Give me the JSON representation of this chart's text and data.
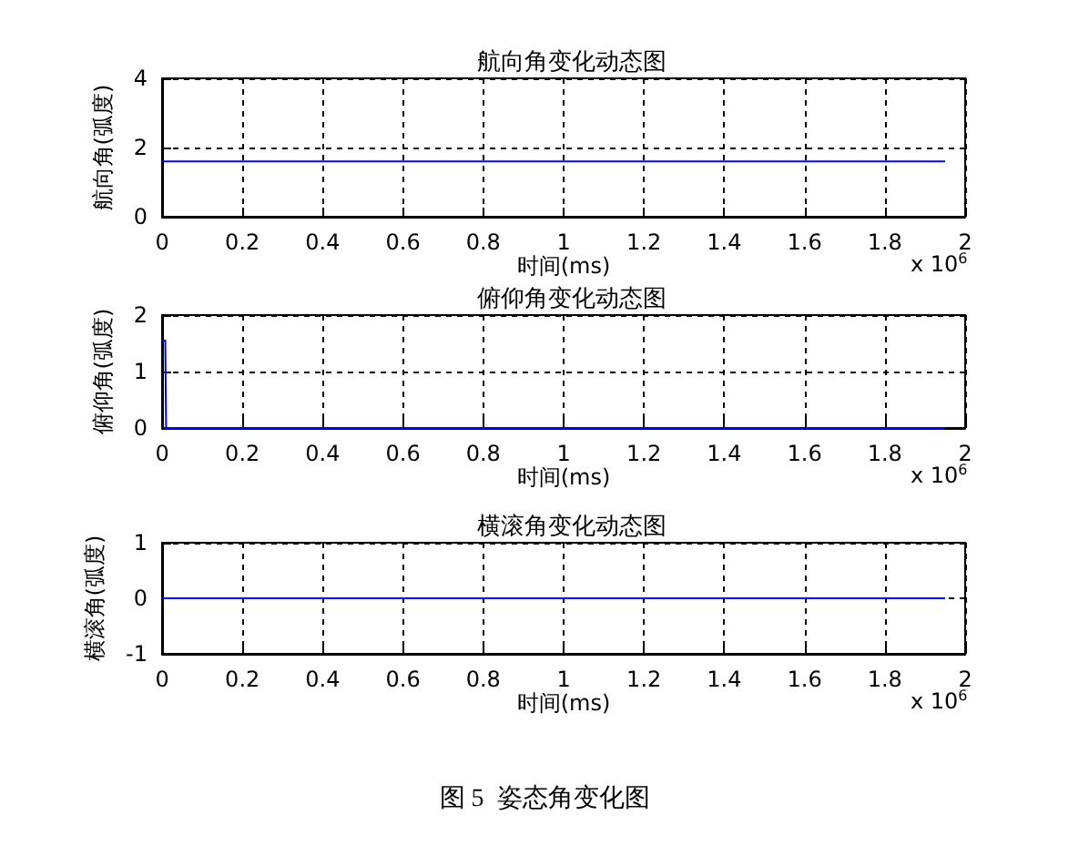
{
  "chart_data": [
    {
      "type": "line",
      "title": "航向角变化动态图",
      "xlabel": "时间(ms)",
      "ylabel": "航向角(弧度)",
      "annotations": [
        "x 10$^{6}$"
      ],
      "x": [
        0,
        1.95
      ],
      "series": [
        {
          "color": "#0000ff",
          "values": [
            1.6,
            1.6
          ]
        }
      ],
      "xlim": [
        0,
        2
      ],
      "xticks": [
        0,
        0.2,
        0.4,
        0.6,
        0.8,
        1,
        1.2,
        1.4,
        1.6,
        1.8,
        2
      ],
      "ylim": [
        0,
        4
      ],
      "yticks": [
        0,
        2,
        4
      ],
      "grid": true,
      "marker": "none",
      "line_style": "solid"
    },
    {
      "type": "line",
      "title": "俯仰角变化动态图",
      "xlabel": "时间(ms)",
      "ylabel": "俯仰角(弧度)",
      "annotations": [
        "x 10$^{6}$"
      ],
      "x": [
        0,
        0.008,
        0.01,
        1.95
      ],
      "series": [
        {
          "color": "#0000ff",
          "values": [
            1.55,
            1.55,
            0,
            0
          ]
        }
      ],
      "xlim": [
        0,
        2
      ],
      "xticks": [
        0,
        0.2,
        0.4,
        0.6,
        0.8,
        1,
        1.2,
        1.4,
        1.6,
        1.8,
        2
      ],
      "ylim": [
        0,
        2
      ],
      "yticks": [
        0,
        1,
        2
      ],
      "grid": true,
      "marker": "none",
      "line_style": "solid"
    },
    {
      "type": "line",
      "title": "横滚角变化动态图",
      "xlabel": "时间(ms)",
      "ylabel": "横滚角(弧度)",
      "annotations": [
        "x 10$^{6}$",
        "图 5  姿态角变化图"
      ],
      "x": [
        0,
        1.95
      ],
      "series": [
        {
          "color": "#0000ff",
          "values": [
            0,
            0
          ]
        }
      ],
      "xlim": [
        0,
        2
      ],
      "xticks": [
        0,
        0.2,
        0.4,
        0.6,
        0.8,
        1,
        1.2,
        1.4,
        1.6,
        1.8,
        2
      ],
      "ylim": [
        -1,
        1
      ],
      "yticks": [
        -1,
        0,
        1
      ],
      "grid": true,
      "marker": "none",
      "line_style": "solid"
    }
  ]
}
